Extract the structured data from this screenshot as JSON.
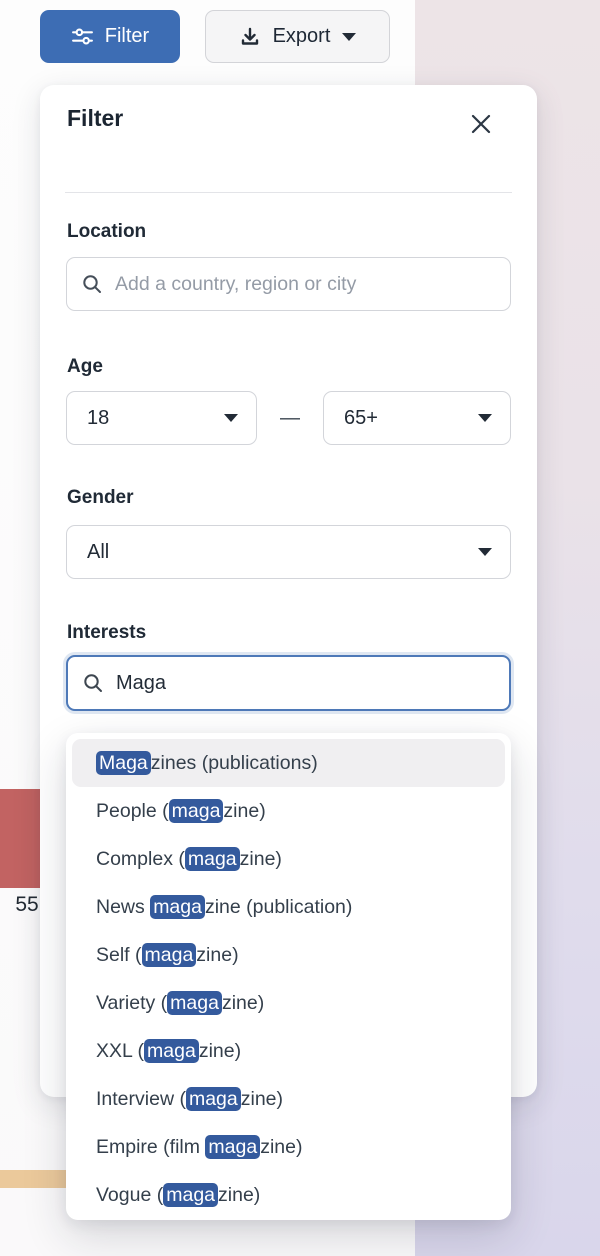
{
  "colors": {
    "accent_blue": "#3d6db4",
    "focus_border": "#4e79b8",
    "match_highlight": "#345a9d",
    "selected_row": "#f0eff1",
    "bar_red": "#c26362",
    "bar_tan": "#ebc99b",
    "bg_right_top": "#ede4e7",
    "bg_right_bottom": "#d9d6eb"
  },
  "toolbar": {
    "filter_label": "Filter",
    "export_label": "Export"
  },
  "panel": {
    "title": "Filter",
    "location_label": "Location",
    "location_placeholder": "Add a country, region or city",
    "age_label": "Age",
    "age_min": "18",
    "age_max": "65+",
    "age_separator": "—",
    "gender_label": "Gender",
    "gender_value": "All",
    "interests_label": "Interests",
    "interests_query": "Maga"
  },
  "suggestions": {
    "items": [
      {
        "pre": "",
        "match": "Maga",
        "post": "zines (publications)",
        "selected": true
      },
      {
        "pre": "People (",
        "match": "maga",
        "post": "zine)",
        "selected": false
      },
      {
        "pre": "Complex (",
        "match": "maga",
        "post": "zine)",
        "selected": false
      },
      {
        "pre": "News ",
        "match": "maga",
        "post": "zine (publication)",
        "selected": false
      },
      {
        "pre": "Self (",
        "match": "maga",
        "post": "zine)",
        "selected": false
      },
      {
        "pre": "Variety (",
        "match": "maga",
        "post": "zine)",
        "selected": false
      },
      {
        "pre": "XXL (",
        "match": "maga",
        "post": "zine)",
        "selected": false
      },
      {
        "pre": "Interview (",
        "match": "maga",
        "post": "zine)",
        "selected": false
      },
      {
        "pre": "Empire (film ",
        "match": "maga",
        "post": "zine)",
        "selected": false
      },
      {
        "pre": "Vogue (",
        "match": "maga",
        "post": "zine)",
        "selected": false
      }
    ]
  },
  "background": {
    "bar_value_label": "55"
  }
}
